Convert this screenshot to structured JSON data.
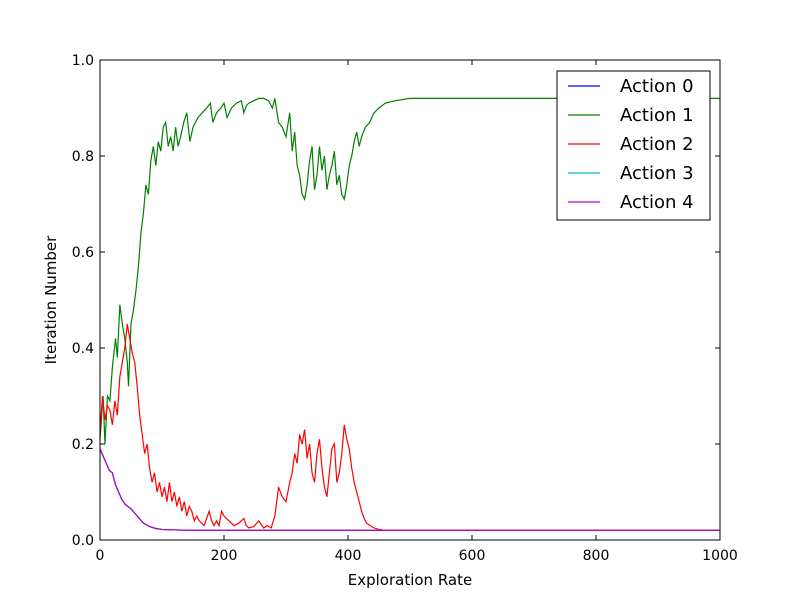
{
  "chart_data": {
    "type": "line",
    "title": "",
    "xlabel": "Exploration Rate",
    "ylabel": "Iteration Number",
    "xlim": [
      0,
      1000
    ],
    "ylim": [
      0.0,
      1.0
    ],
    "x_ticks": [
      "0",
      "200",
      "400",
      "600",
      "800",
      "1000"
    ],
    "y_ticks": [
      "0.0",
      "0.2",
      "0.4",
      "0.6",
      "0.8",
      "1.0"
    ],
    "grid": false,
    "legend_position": "top-right",
    "series": [
      {
        "name": "Action 0",
        "color": "#0000ff",
        "x": [
          0,
          5,
          10,
          15,
          20,
          25,
          30,
          35,
          40,
          50,
          60,
          70,
          80,
          90,
          100,
          120,
          150,
          200,
          300,
          400,
          500,
          600,
          800,
          1000
        ],
        "y": [
          0.19,
          0.175,
          0.16,
          0.145,
          0.14,
          0.115,
          0.1,
          0.085,
          0.075,
          0.065,
          0.05,
          0.035,
          0.028,
          0.024,
          0.022,
          0.021,
          0.02,
          0.02,
          0.02,
          0.02,
          0.02,
          0.02,
          0.02,
          0.02
        ]
      },
      {
        "name": "Action 1",
        "color": "#008000",
        "x": [
          0,
          5,
          8,
          12,
          16,
          20,
          25,
          28,
          32,
          36,
          40,
          44,
          46,
          50,
          54,
          58,
          62,
          66,
          70,
          74,
          78,
          82,
          86,
          90,
          94,
          98,
          102,
          106,
          110,
          114,
          118,
          122,
          126,
          130,
          135,
          140,
          145,
          150,
          158,
          165,
          172,
          178,
          182,
          188,
          195,
          200,
          205,
          212,
          220,
          228,
          232,
          236,
          240,
          248,
          256,
          264,
          272,
          278,
          282,
          288,
          294,
          300,
          306,
          310,
          314,
          318,
          322,
          326,
          330,
          334,
          338,
          342,
          346,
          350,
          354,
          358,
          362,
          366,
          370,
          374,
          378,
          382,
          386,
          390,
          394,
          398,
          402,
          406,
          410,
          414,
          418,
          422,
          428,
          435,
          442,
          450,
          460,
          475,
          500,
          550,
          600,
          700,
          800,
          900,
          1000
        ],
        "y": [
          0.21,
          0.3,
          0.2,
          0.3,
          0.29,
          0.36,
          0.42,
          0.38,
          0.49,
          0.45,
          0.42,
          0.37,
          0.32,
          0.45,
          0.48,
          0.52,
          0.57,
          0.64,
          0.68,
          0.74,
          0.72,
          0.79,
          0.82,
          0.78,
          0.83,
          0.81,
          0.86,
          0.87,
          0.82,
          0.84,
          0.81,
          0.86,
          0.82,
          0.84,
          0.87,
          0.89,
          0.83,
          0.86,
          0.88,
          0.89,
          0.9,
          0.91,
          0.87,
          0.89,
          0.9,
          0.91,
          0.88,
          0.9,
          0.91,
          0.915,
          0.89,
          0.905,
          0.91,
          0.915,
          0.92,
          0.92,
          0.915,
          0.9,
          0.92,
          0.87,
          0.86,
          0.84,
          0.89,
          0.81,
          0.85,
          0.78,
          0.76,
          0.72,
          0.71,
          0.74,
          0.79,
          0.82,
          0.73,
          0.76,
          0.82,
          0.77,
          0.8,
          0.73,
          0.76,
          0.78,
          0.81,
          0.74,
          0.76,
          0.72,
          0.71,
          0.74,
          0.78,
          0.8,
          0.83,
          0.85,
          0.82,
          0.84,
          0.86,
          0.87,
          0.89,
          0.9,
          0.91,
          0.915,
          0.92,
          0.92,
          0.92,
          0.92,
          0.92,
          0.92,
          0.92
        ]
      },
      {
        "name": "Action 2",
        "color": "#ff0000",
        "x": [
          0,
          4,
          8,
          12,
          16,
          20,
          24,
          28,
          32,
          36,
          40,
          44,
          48,
          52,
          56,
          60,
          64,
          68,
          72,
          76,
          80,
          84,
          88,
          92,
          96,
          100,
          104,
          108,
          112,
          116,
          120,
          124,
          128,
          132,
          136,
          140,
          144,
          148,
          152,
          156,
          160,
          168,
          176,
          180,
          184,
          188,
          192,
          196,
          200,
          208,
          216,
          224,
          232,
          236,
          240,
          248,
          256,
          264,
          270,
          276,
          282,
          288,
          294,
          300,
          306,
          310,
          314,
          318,
          322,
          326,
          330,
          334,
          338,
          342,
          346,
          350,
          354,
          358,
          362,
          366,
          370,
          374,
          378,
          382,
          386,
          390,
          394,
          398,
          402,
          406,
          410,
          414,
          418,
          422,
          426,
          430,
          436,
          442,
          450,
          460,
          475,
          500,
          550,
          600,
          700,
          800,
          900,
          1000
        ],
        "y": [
          0.22,
          0.3,
          0.25,
          0.28,
          0.27,
          0.24,
          0.29,
          0.26,
          0.34,
          0.37,
          0.4,
          0.45,
          0.42,
          0.39,
          0.37,
          0.32,
          0.26,
          0.22,
          0.18,
          0.2,
          0.15,
          0.12,
          0.14,
          0.1,
          0.12,
          0.09,
          0.11,
          0.08,
          0.12,
          0.08,
          0.1,
          0.07,
          0.09,
          0.06,
          0.08,
          0.05,
          0.07,
          0.06,
          0.04,
          0.05,
          0.04,
          0.03,
          0.06,
          0.04,
          0.03,
          0.04,
          0.03,
          0.06,
          0.05,
          0.04,
          0.03,
          0.035,
          0.045,
          0.03,
          0.025,
          0.028,
          0.04,
          0.025,
          0.03,
          0.025,
          0.05,
          0.11,
          0.09,
          0.08,
          0.12,
          0.14,
          0.18,
          0.16,
          0.22,
          0.2,
          0.23,
          0.17,
          0.2,
          0.14,
          0.12,
          0.18,
          0.21,
          0.15,
          0.11,
          0.09,
          0.14,
          0.19,
          0.2,
          0.12,
          0.14,
          0.18,
          0.24,
          0.21,
          0.19,
          0.15,
          0.12,
          0.1,
          0.08,
          0.06,
          0.045,
          0.035,
          0.03,
          0.025,
          0.022,
          0.02,
          0.02,
          0.02,
          0.02,
          0.02,
          0.02,
          0.02,
          0.02,
          0.02
        ]
      },
      {
        "name": "Action 3",
        "color": "#00bfbf",
        "x": [
          0,
          5,
          10,
          15,
          20,
          25,
          30,
          35,
          40,
          50,
          60,
          70,
          80,
          90,
          100,
          120,
          150,
          200,
          300,
          400,
          500,
          600,
          800,
          1000
        ],
        "y": [
          0.19,
          0.175,
          0.16,
          0.145,
          0.14,
          0.115,
          0.1,
          0.085,
          0.075,
          0.065,
          0.05,
          0.035,
          0.028,
          0.024,
          0.022,
          0.021,
          0.02,
          0.02,
          0.02,
          0.02,
          0.02,
          0.02,
          0.02,
          0.02
        ]
      },
      {
        "name": "Action 4",
        "color": "#bf00bf",
        "x": [
          0,
          5,
          10,
          15,
          20,
          25,
          30,
          35,
          40,
          50,
          60,
          70,
          80,
          90,
          100,
          120,
          150,
          200,
          300,
          400,
          500,
          600,
          800,
          1000
        ],
        "y": [
          0.19,
          0.175,
          0.16,
          0.145,
          0.14,
          0.115,
          0.1,
          0.085,
          0.075,
          0.065,
          0.05,
          0.035,
          0.028,
          0.024,
          0.022,
          0.021,
          0.02,
          0.02,
          0.02,
          0.02,
          0.02,
          0.02,
          0.02,
          0.02
        ]
      }
    ]
  }
}
